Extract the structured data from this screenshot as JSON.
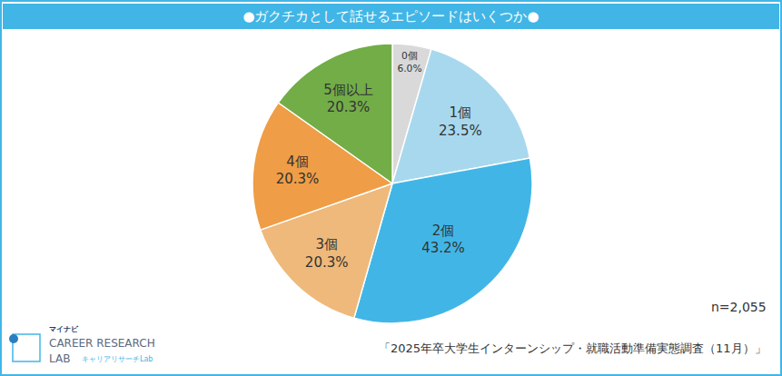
{
  "chart_data": {
    "type": "pie",
    "title": "●ガクチカとして話せるエピソードはいくつか●",
    "categories": [
      "0個",
      "1個",
      "2個",
      "3個",
      "4個",
      "5個以上"
    ],
    "values": [
      6.0,
      23.5,
      43.2,
      20.3,
      20.3,
      20.3
    ],
    "value_labels": [
      "6.0%",
      "23.5%",
      "43.2%",
      "20.3%",
      "20.3%",
      "20.3%"
    ],
    "colors": [
      "#d9d9d9",
      "#a8d8ee",
      "#41b6e6",
      "#eeb97a",
      "#ef9d46",
      "#72ad47"
    ],
    "data_labels": true,
    "legend": false,
    "annotations": [
      "n=2,055",
      "「2025年卒大学生インターンシップ・就職活動準備実態調査（11月）」"
    ],
    "logo": [
      "マイナビ",
      "CAREER RESEARCH",
      "LAB",
      "キャリアリサーチLab"
    ]
  }
}
